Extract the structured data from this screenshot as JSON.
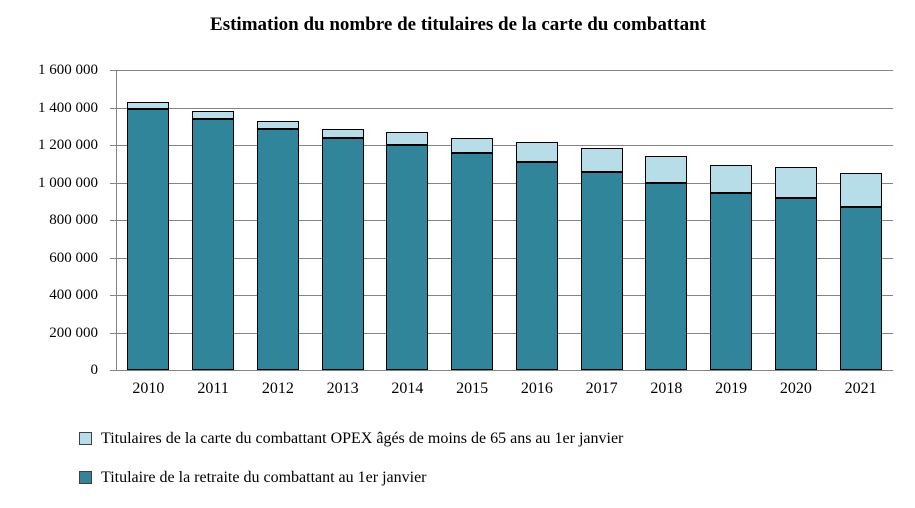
{
  "chart_data": {
    "type": "bar",
    "stacked": true,
    "title": "Estimation du nombre de titulaires de la carte du combattant",
    "categories": [
      "2010",
      "2011",
      "2012",
      "2013",
      "2014",
      "2015",
      "2016",
      "2017",
      "2018",
      "2019",
      "2020",
      "2021"
    ],
    "series": [
      {
        "name": "Titulaires de la carte du combattant OPEX âgés de moins de 65 ans au 1er janvier",
        "color": "#B7DEE8",
        "values": [
          40000,
          40000,
          45000,
          45000,
          70000,
          80000,
          105000,
          130000,
          140000,
          150000,
          170000,
          180000
        ]
      },
      {
        "name": "Titulaire de la retraite du combattant au 1er janvier",
        "color": "#31859B",
        "values": [
          1390000,
          1340000,
          1285000,
          1240000,
          1200000,
          1160000,
          1110000,
          1055000,
          1000000,
          945000,
          915000,
          870000
        ]
      }
    ],
    "stack_note": "series drawn bottom-to-top in reverse list order (retraite at bottom, OPEX on top)",
    "xlabel": "",
    "ylabel": "",
    "ylim": [
      0,
      1600000
    ],
    "ytick_step": 200000,
    "ytick_labels_bottom_to_top": [
      "0",
      "200 000",
      "400 000",
      "600 000",
      "800 000",
      "1 000 000",
      "1 200 000",
      "1 400 000",
      "1 600 000"
    ],
    "grid": true,
    "legend_position": "bottom-left",
    "axis_color": "#848484",
    "bar_border_color": "#000000",
    "text_color": "#000000",
    "background_color": "#ffffff"
  },
  "legend": {
    "items": [
      {
        "label": "Titulaires de la carte du combattant OPEX âgés de moins de 65 ans au 1er janvier",
        "color": "#B7DEE8"
      },
      {
        "label": "Titulaire de la retraite du combattant au 1er janvier",
        "color": "#31859B"
      }
    ]
  }
}
